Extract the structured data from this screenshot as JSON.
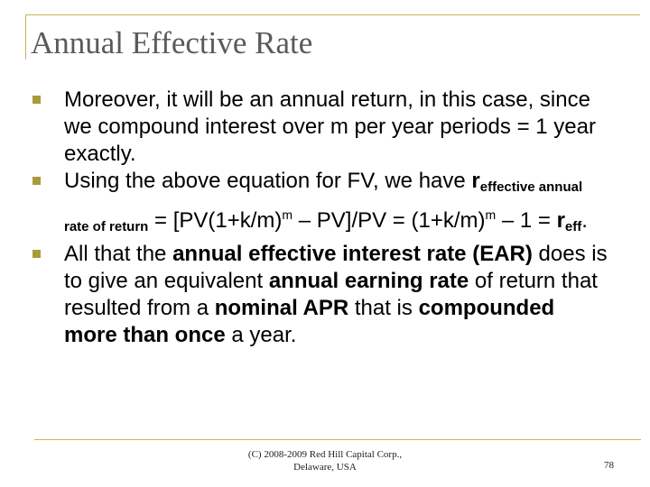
{
  "slide": {
    "title": "Annual Effective Rate",
    "bullets": {
      "b1": {
        "text": "Moreover, it will be an annual return, in this case, since we compound interest over m per year periods = 1 year exactly."
      },
      "b2": {
        "intro": "Using the above equation for FV, we have ",
        "r_symbol": "r",
        "r_subscript": "effective annual rate of return",
        "eq_part1": " = [PV(1+k/m)",
        "exp1": "m",
        "eq_part2": " – PV]/PV = (1+k/m)",
        "exp2": "m",
        "eq_part3": " – 1 = ",
        "r_symbol2": "r",
        "r_subscript2": "eff",
        "end": "."
      },
      "b3": {
        "t1": "All that the ",
        "bold1": "annual effective interest rate (EAR)",
        "t2": " does is to give an equivalent ",
        "bold2": "annual earning rate",
        "t3": " of return that resulted from a ",
        "bold3": "nominal APR",
        "t4": " that is ",
        "bold4": "compounded more than once",
        "t5": " a year."
      }
    },
    "footer": {
      "line1": "(C) 2008-2009 Red Hill Capital Corp.,",
      "line2": "Delaware, USA"
    },
    "page_number": "78",
    "colors": {
      "title": "#5a5a5a",
      "accent": "#c8b45a",
      "bullet": "#a89a3a"
    },
    "icons": {
      "bullet": "square-bullet-icon"
    }
  }
}
